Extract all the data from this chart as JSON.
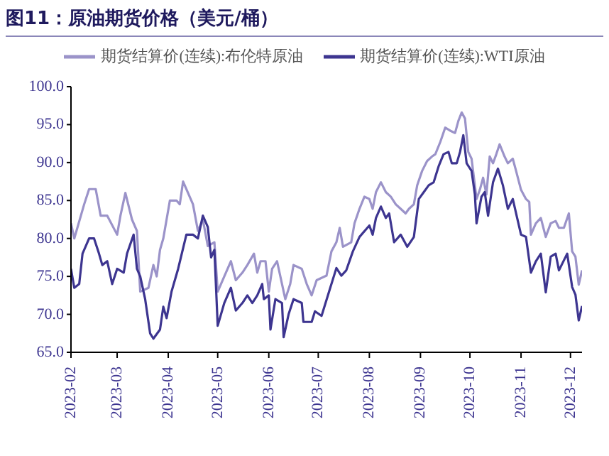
{
  "chart_data": {
    "type": "line",
    "title": "图11：原油期货价格（美元/桶）",
    "series": [
      {
        "name": "期货结算价(连续):布伦特原油",
        "color": "#9b93c9",
        "x": [
          "2023-02-01",
          "2023-02-03",
          "2023-02-09",
          "2023-02-12",
          "2023-02-16",
          "2023-02-19",
          "2023-02-23",
          "2023-03-01",
          "2023-03-03",
          "2023-03-06",
          "2023-03-10",
          "2023-03-13",
          "2023-03-15",
          "2023-03-20",
          "2023-03-23",
          "2023-03-25",
          "2023-03-27",
          "2023-03-29",
          "2023-04-02",
          "2023-04-06",
          "2023-04-08",
          "2023-04-10",
          "2023-04-13",
          "2023-04-16",
          "2023-04-19",
          "2023-04-22",
          "2023-04-25",
          "2023-04-29",
          "2023-05-01",
          "2023-05-05",
          "2023-05-09",
          "2023-05-12",
          "2023-05-16",
          "2023-05-19",
          "2023-05-23",
          "2023-05-25",
          "2023-05-27",
          "2023-05-30",
          "2023-06-01",
          "2023-06-03",
          "2023-06-06",
          "2023-06-11",
          "2023-06-14",
          "2023-06-16",
          "2023-06-21",
          "2023-06-24",
          "2023-06-27",
          "2023-06-30",
          "2023-07-06",
          "2023-07-09",
          "2023-07-12",
          "2023-07-14",
          "2023-07-16",
          "2023-07-21",
          "2023-07-23",
          "2023-07-26",
          "2023-07-29",
          "2023-08-01",
          "2023-08-03",
          "2023-08-05",
          "2023-08-08",
          "2023-08-11",
          "2023-08-14",
          "2023-08-17",
          "2023-08-20",
          "2023-08-23",
          "2023-08-25",
          "2023-08-28",
          "2023-08-30",
          "2023-09-02",
          "2023-09-05",
          "2023-09-08",
          "2023-09-10",
          "2023-09-13",
          "2023-09-16",
          "2023-09-19",
          "2023-09-22",
          "2023-09-24",
          "2023-09-26",
          "2023-09-28",
          "2023-09-30",
          "2023-10-02",
          "2023-10-04",
          "2023-10-05",
          "2023-10-07",
          "2023-10-09",
          "2023-10-11",
          "2023-10-13",
          "2023-10-15",
          "2023-10-17",
          "2023-10-19",
          "2023-10-22",
          "2023-10-24",
          "2023-10-27",
          "2023-10-29",
          "2023-11-01",
          "2023-11-04",
          "2023-11-06",
          "2023-11-07",
          "2023-11-10",
          "2023-11-13",
          "2023-11-16",
          "2023-11-19",
          "2023-11-22",
          "2023-11-24",
          "2023-11-27",
          "2023-11-30",
          "2023-12-02",
          "2023-12-04",
          "2023-12-06",
          "2023-12-08"
        ],
        "values": [
          82,
          80,
          84.5,
          86.5,
          86.5,
          83,
          83,
          80.5,
          83,
          86,
          82.5,
          81,
          73,
          73.5,
          76.5,
          75,
          78.5,
          80,
          85,
          85,
          84.5,
          87.5,
          86,
          84.5,
          81,
          82.5,
          79,
          79.5,
          73,
          75,
          77,
          74.5,
          75.5,
          76.5,
          78,
          75.5,
          77,
          77,
          73,
          76,
          77,
          72,
          74,
          76.5,
          76,
          74,
          72.5,
          74.5,
          75.1,
          78.3,
          79.5,
          81.4,
          78.9,
          79.5,
          82.0,
          83.9,
          85.5,
          85.2,
          83.9,
          86.1,
          87.4,
          86.1,
          85.5,
          84.5,
          83.9,
          83.3,
          83.9,
          84.5,
          87.0,
          88.9,
          90.2,
          90.8,
          91.1,
          92.7,
          94.6,
          94.2,
          93.9,
          95.5,
          96.6,
          95.8,
          91.4,
          90.5,
          87.0,
          85.2,
          86.4,
          88.0,
          85.8,
          90.8,
          89.9,
          91.1,
          92.4,
          90.8,
          89.9,
          90.5,
          88.9,
          86.4,
          85.2,
          84.8,
          80.5,
          82.0,
          82.7,
          80.2,
          82.0,
          82.3,
          81.4,
          81.4,
          83.3,
          78.3,
          77.6,
          73.9,
          75.8
        ]
      },
      {
        "name": "期货结算价(连续):WTI原油",
        "color": "#3d3590",
        "x": [
          "2023-02-01",
          "2023-02-03",
          "2023-02-06",
          "2023-02-08",
          "2023-02-12",
          "2023-02-15",
          "2023-02-18",
          "2023-02-20",
          "2023-02-23",
          "2023-02-26",
          "2023-03-01",
          "2023-03-05",
          "2023-03-07",
          "2023-03-11",
          "2023-03-13",
          "2023-03-15",
          "2023-03-18",
          "2023-03-21",
          "2023-03-23",
          "2023-03-27",
          "2023-03-29",
          "2023-03-31",
          "2023-04-03",
          "2023-04-07",
          "2023-04-12",
          "2023-04-16",
          "2023-04-19",
          "2023-04-22",
          "2023-04-25",
          "2023-04-27",
          "2023-04-29",
          "2023-05-01",
          "2023-05-05",
          "2023-05-09",
          "2023-05-12",
          "2023-05-16",
          "2023-05-19",
          "2023-05-22",
          "2023-05-25",
          "2023-05-28",
          "2023-05-29",
          "2023-06-01",
          "2023-06-02",
          "2023-06-05",
          "2023-06-09",
          "2023-06-10",
          "2023-06-13",
          "2023-06-16",
          "2023-06-21",
          "2023-06-22",
          "2023-06-27",
          "2023-06-29",
          "2023-07-03",
          "2023-07-08",
          "2023-07-12",
          "2023-07-15",
          "2023-07-18",
          "2023-07-22",
          "2023-07-26",
          "2023-08-01",
          "2023-08-03",
          "2023-08-05",
          "2023-08-08",
          "2023-08-11",
          "2023-08-13",
          "2023-08-16",
          "2023-08-20",
          "2023-08-24",
          "2023-08-28",
          "2023-08-31",
          "2023-09-03",
          "2023-09-06",
          "2023-09-09",
          "2023-09-12",
          "2023-09-15",
          "2023-09-18",
          "2023-09-20",
          "2023-09-23",
          "2023-09-25",
          "2023-09-27",
          "2023-09-29",
          "2023-10-02",
          "2023-10-04",
          "2023-10-05",
          "2023-10-08",
          "2023-10-10",
          "2023-10-12",
          "2023-10-15",
          "2023-10-18",
          "2023-10-21",
          "2023-10-24",
          "2023-10-27",
          "2023-10-29",
          "2023-11-01",
          "2023-11-04",
          "2023-11-07",
          "2023-11-10",
          "2023-11-13",
          "2023-11-16",
          "2023-11-19",
          "2023-11-22",
          "2023-11-24",
          "2023-11-29",
          "2023-12-02",
          "2023-12-04",
          "2023-12-06",
          "2023-12-08"
        ],
        "values": [
          76,
          73.5,
          74,
          78,
          80,
          80,
          78,
          76.5,
          77,
          74,
          76,
          75.5,
          78,
          80.5,
          76,
          75,
          72,
          67.5,
          66.8,
          68,
          71,
          69.5,
          73,
          76,
          80.5,
          80.5,
          80,
          83,
          81.5,
          77.5,
          78.5,
          68.5,
          71.5,
          73.5,
          70.5,
          71.5,
          72.5,
          71.5,
          72.5,
          74,
          72,
          72.5,
          68,
          72,
          71.5,
          67,
          70,
          72,
          71.5,
          69,
          69,
          70.4,
          69.8,
          73.3,
          76.1,
          75.1,
          75.8,
          78.3,
          80.2,
          81.7,
          80.5,
          82.7,
          84.2,
          82.7,
          83.3,
          79.5,
          80.5,
          78.9,
          80.2,
          85.2,
          86.1,
          87.0,
          87.4,
          89.5,
          91.1,
          91.4,
          89.9,
          89.9,
          91.4,
          93.6,
          89.9,
          88.9,
          85.8,
          82.0,
          85.5,
          86.1,
          83.0,
          87.4,
          89.2,
          87.0,
          83.9,
          85.2,
          83.3,
          80.5,
          80.2,
          75.5,
          77.0,
          78.0,
          72.9,
          77.6,
          78.0,
          75.8,
          78.0,
          73.6,
          72.6,
          69.2,
          71.1
        ]
      }
    ],
    "xlim": [
      "2023-02-01",
      "2023-12-08"
    ],
    "xticks": [
      {
        "value": "2023-02-01",
        "label": "2023-02"
      },
      {
        "value": "2023-03-01",
        "label": "2023-03"
      },
      {
        "value": "2023-04-01",
        "label": "2023-04"
      },
      {
        "value": "2023-05-01",
        "label": "2023-05"
      },
      {
        "value": "2023-06-01",
        "label": "2023-06"
      },
      {
        "value": "2023-07-01",
        "label": "2023-07"
      },
      {
        "value": "2023-08-01",
        "label": "2023-08"
      },
      {
        "value": "2023-09-01",
        "label": "2023-09"
      },
      {
        "value": "2023-10-01",
        "label": "2023-10"
      },
      {
        "value": "2023-11-01",
        "label": "2023-11"
      },
      {
        "value": "2023-12-01",
        "label": "2023-12"
      }
    ],
    "ylim": [
      65,
      100
    ],
    "yticks": [
      {
        "value": 65,
        "label": "65.0"
      },
      {
        "value": 70,
        "label": "70.0"
      },
      {
        "value": 75,
        "label": "75.0"
      },
      {
        "value": 80,
        "label": "80.0"
      },
      {
        "value": 85,
        "label": "85.0"
      },
      {
        "value": 90,
        "label": "90.0"
      },
      {
        "value": 95,
        "label": "95.0"
      },
      {
        "value": 100,
        "label": "100.0"
      }
    ],
    "grid": false,
    "legend": "top",
    "marker": "none",
    "line_style": "solid"
  }
}
